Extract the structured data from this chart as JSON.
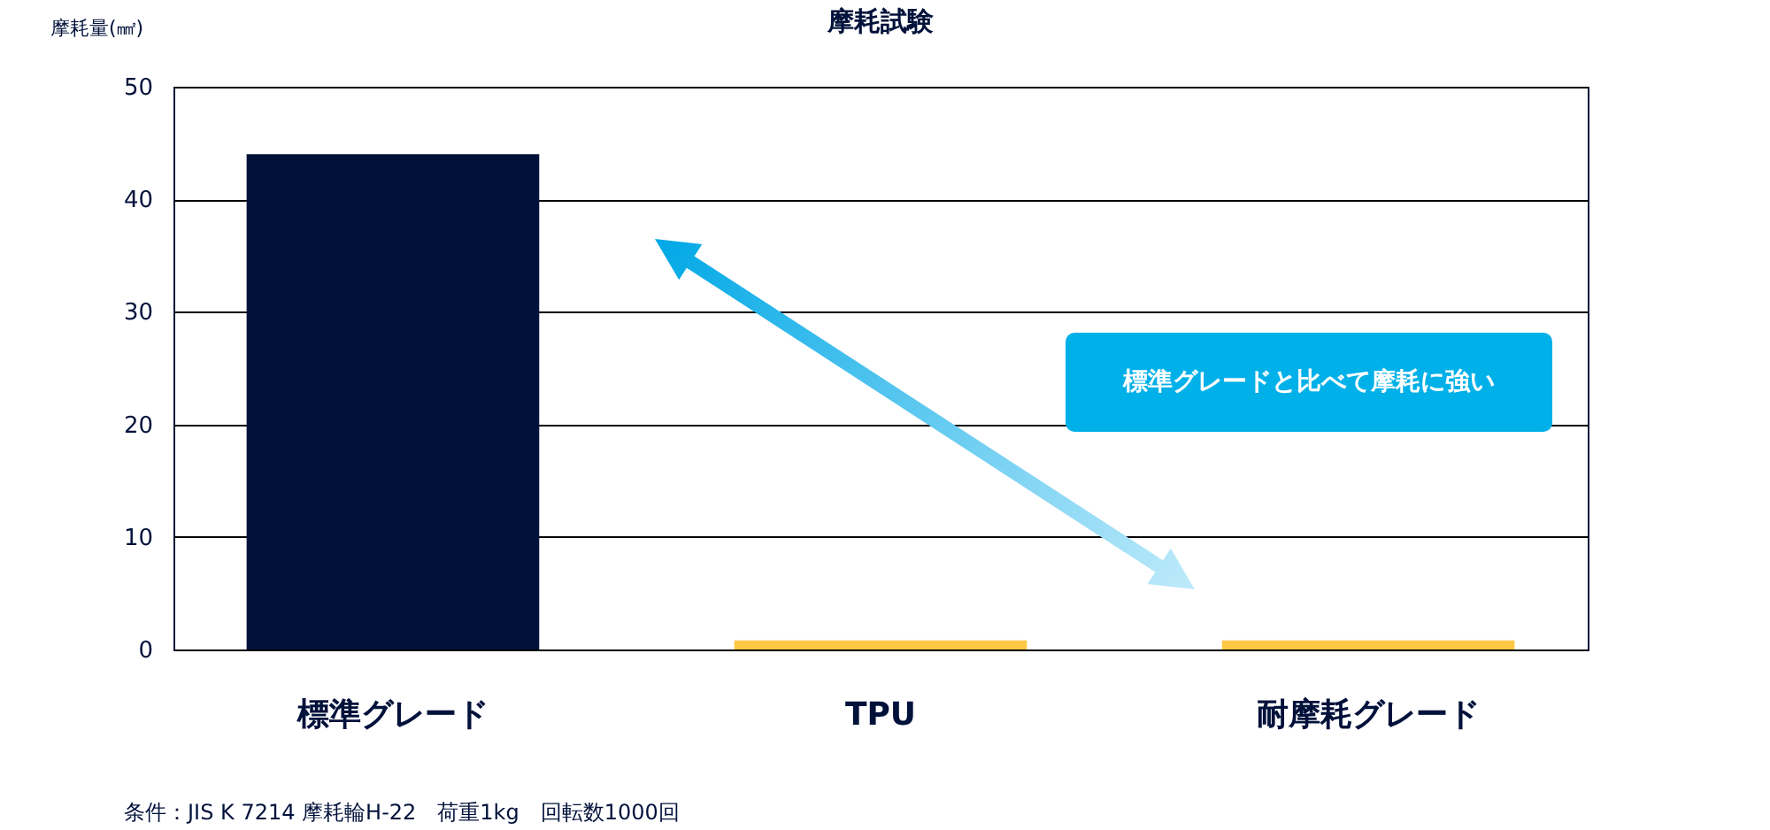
{
  "chart_data": {
    "type": "bar",
    "title": "摩耗試験",
    "ylabel": "摩耗量(㎟)",
    "categories": [
      "標準グレード",
      "TPU",
      "耐摩耗グレード"
    ],
    "values": [
      44,
      0.8,
      0.8
    ],
    "colors": [
      "#00113a",
      "#ffc845",
      "#ffc845"
    ],
    "ylim": [
      0,
      50
    ],
    "yticks": [
      0,
      10,
      20,
      30,
      40,
      50
    ],
    "grid": "y",
    "annotations": [
      "標準グレードと比べて摩耗に強い",
      "条件：JIS K 7214 摩耗輪H-22　荷重1kg　回転数1000回"
    ]
  }
}
